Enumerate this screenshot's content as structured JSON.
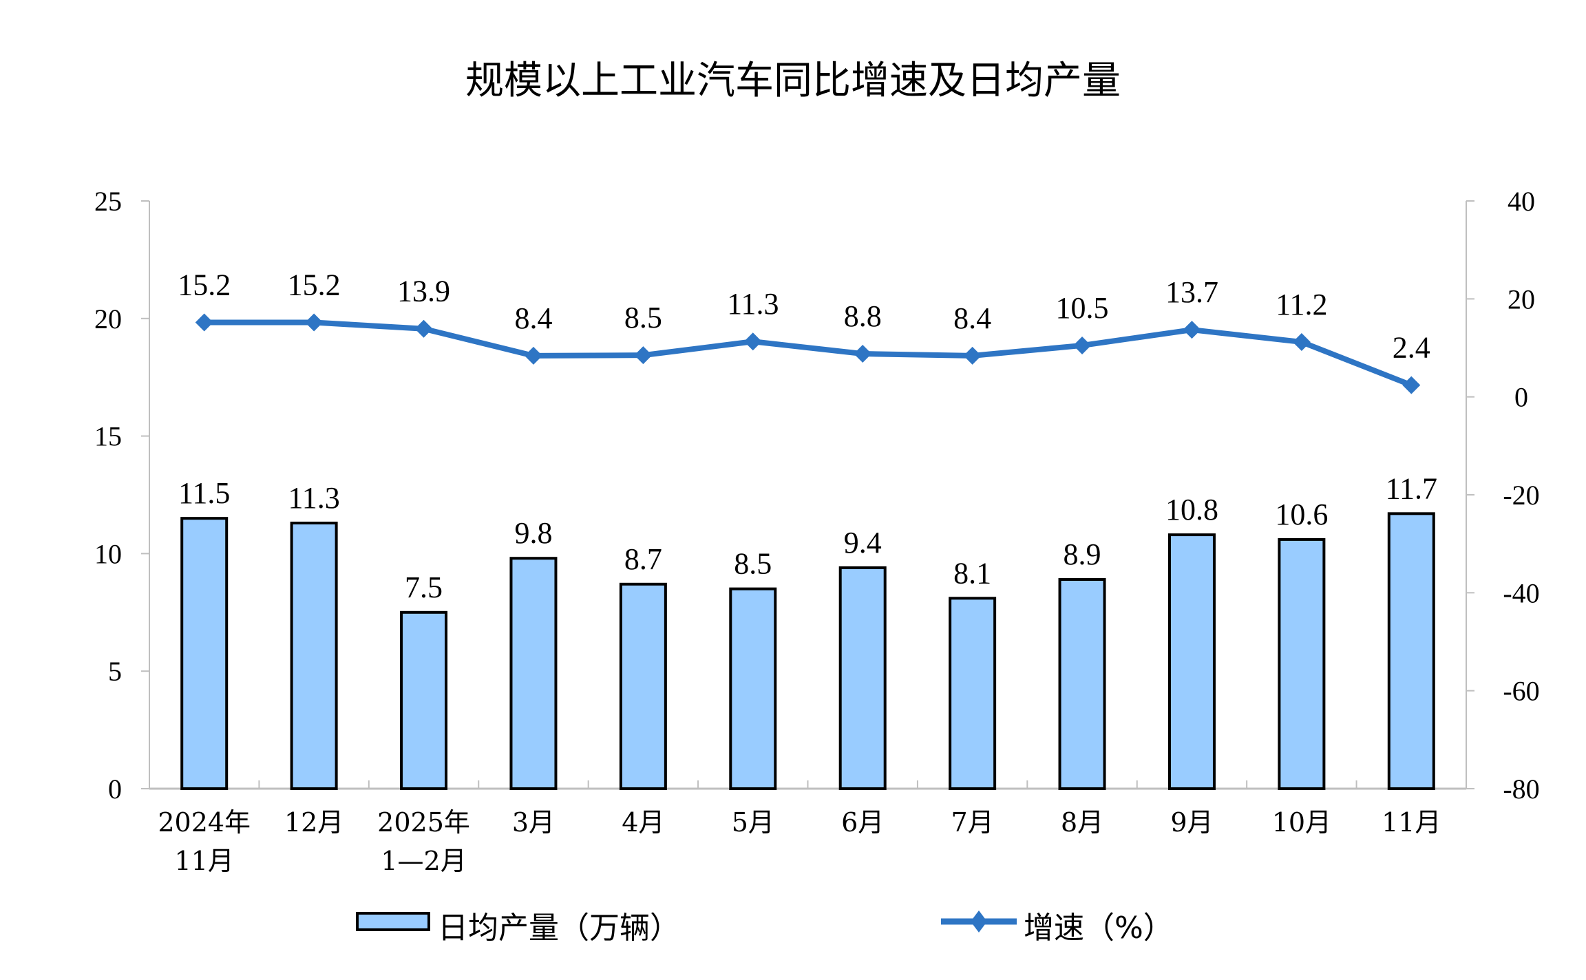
{
  "chart_data": {
    "type": "bar+line",
    "title": "规模以上工业汽车同比增速及日均产量",
    "categories": [
      [
        "2024年",
        "11月"
      ],
      [
        "12月"
      ],
      [
        "2025年",
        "1—2月"
      ],
      [
        "3月"
      ],
      [
        "4月"
      ],
      [
        "5月"
      ],
      [
        "6月"
      ],
      [
        "7月"
      ],
      [
        "8月"
      ],
      [
        "9月"
      ],
      [
        "10月"
      ],
      [
        "11月"
      ]
    ],
    "series": [
      {
        "name": "日均产量（万辆）",
        "type": "bar",
        "axis": "left",
        "color": "#99CCFF",
        "values": [
          11.5,
          11.3,
          7.5,
          9.8,
          8.7,
          8.5,
          9.4,
          8.1,
          8.9,
          10.8,
          10.6,
          11.7
        ]
      },
      {
        "name": "增速（%）",
        "type": "line",
        "axis": "right",
        "color": "#2E75C4",
        "marker": "diamond",
        "values": [
          15.2,
          15.2,
          13.9,
          8.4,
          8.5,
          11.3,
          8.8,
          8.4,
          10.5,
          13.7,
          11.2,
          2.4
        ]
      }
    ],
    "left_axis": {
      "ylim": [
        0,
        25
      ],
      "ticks": [
        0,
        5,
        10,
        15,
        20,
        25
      ]
    },
    "right_axis": {
      "ylim": [
        -80,
        40
      ],
      "ticks": [
        -80,
        -60,
        -40,
        -20,
        0,
        20,
        40
      ]
    },
    "legend": "bottom",
    "grid": false
  }
}
